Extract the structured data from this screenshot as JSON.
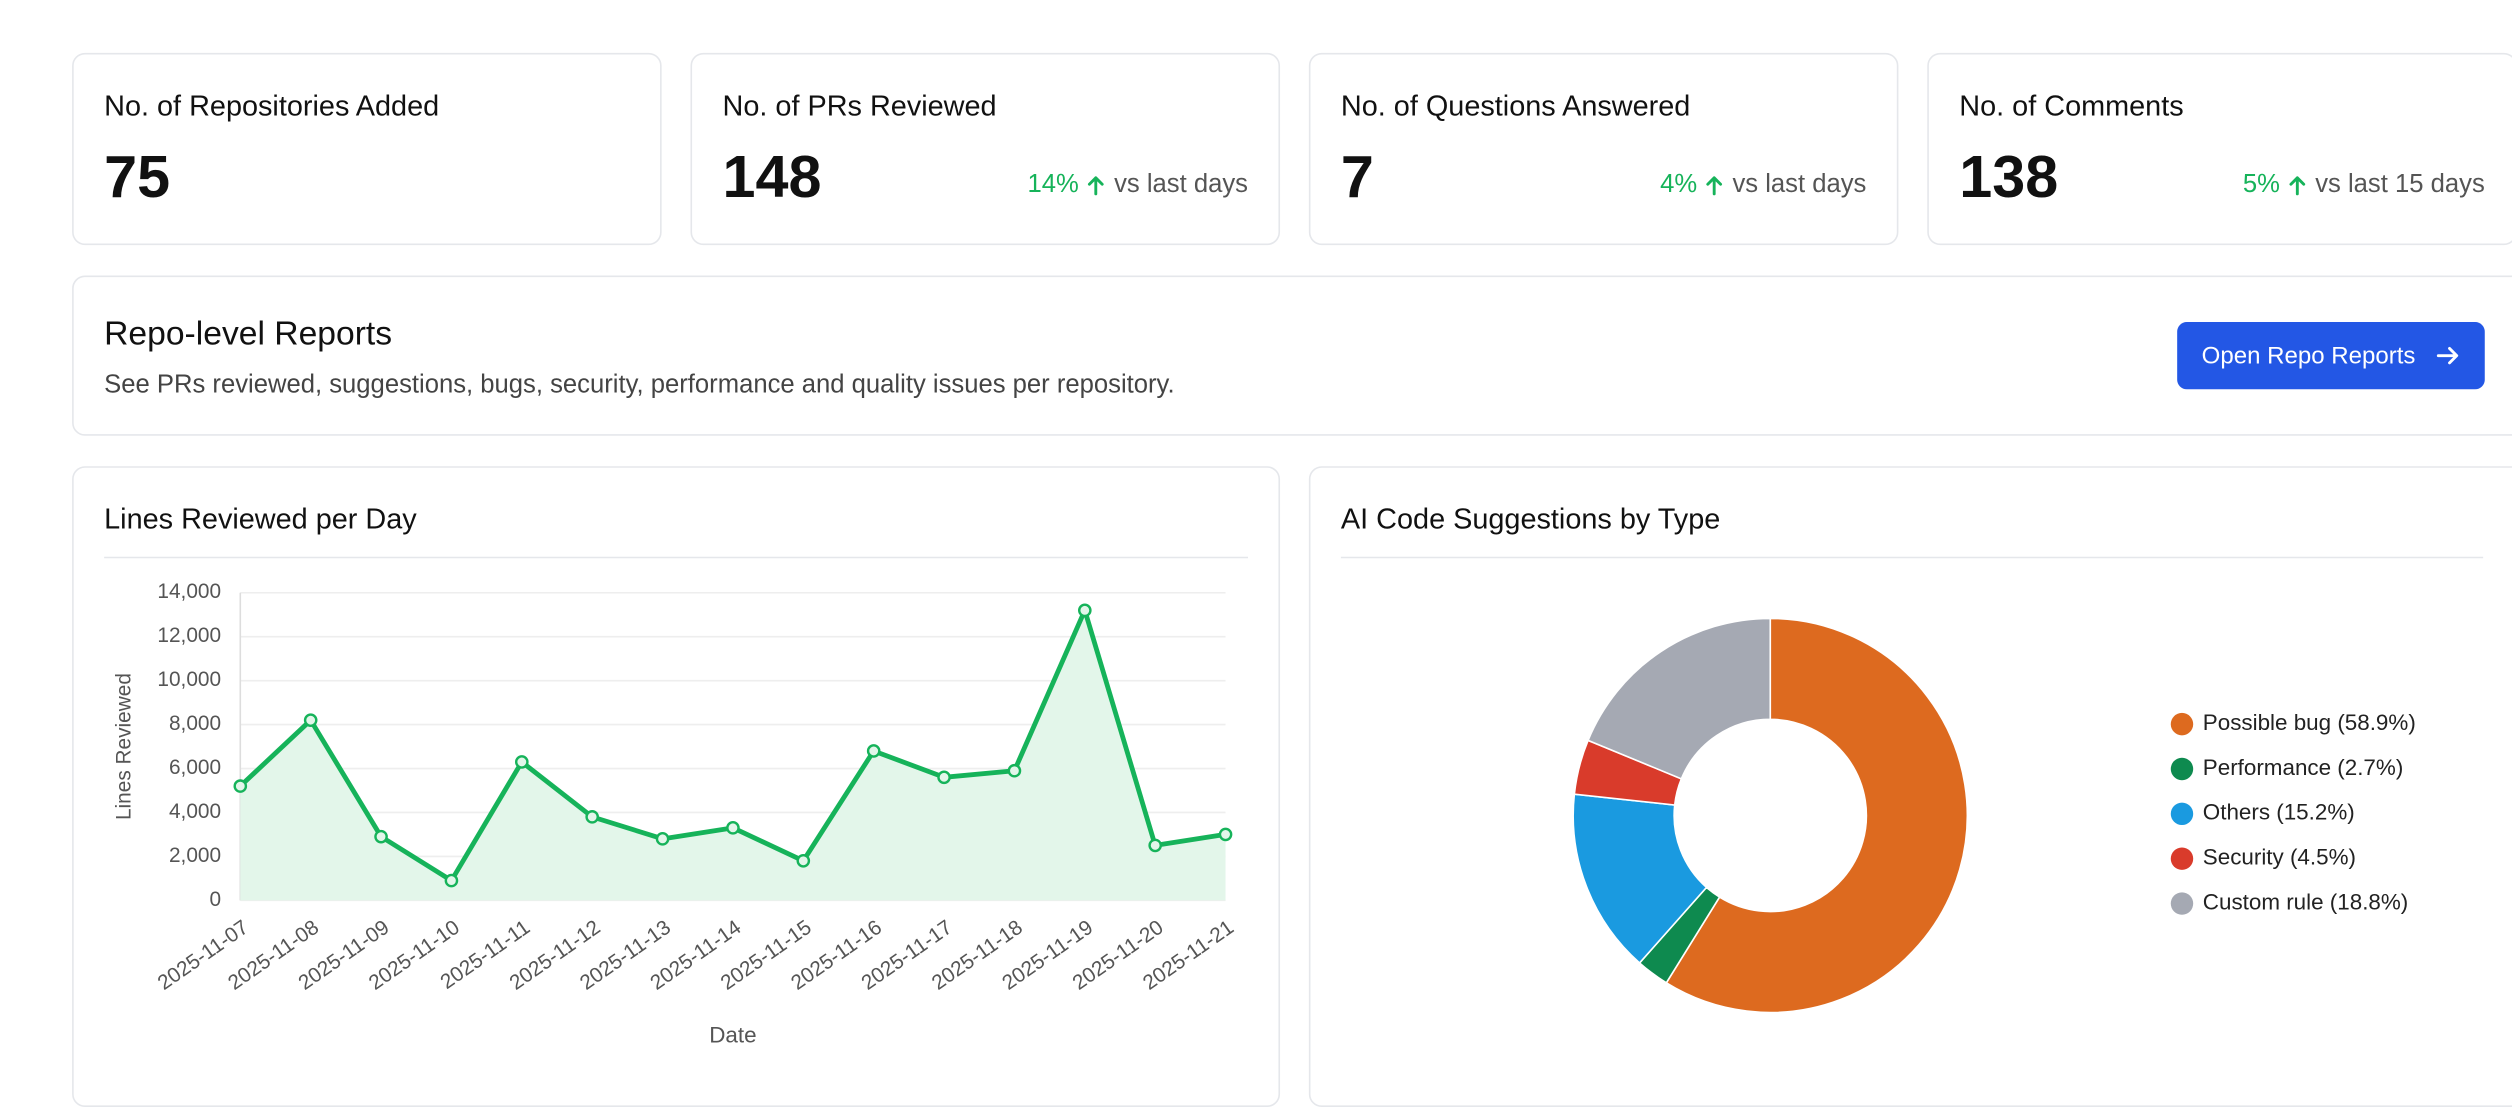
{
  "stats": [
    {
      "title": "No. of Repositories Added",
      "value": "75"
    },
    {
      "title": "No. of PRs Reviewed",
      "value": "148",
      "change": "14%",
      "period": "vs last days"
    },
    {
      "title": "No. of Questions Answered",
      "value": "7",
      "change": "4%",
      "period": "vs last days"
    },
    {
      "title": "No. of Comments",
      "value": "138",
      "change": "5%",
      "period": "vs last 15 days"
    }
  ],
  "repo_reports": {
    "title": "Repo-level Reports",
    "description": "See PRs reviewed, suggestions, bugs, security, performance and quality issues per repository.",
    "button": "Open Repo Reports"
  },
  "chart_data": [
    {
      "type": "line",
      "title": "Lines Reviewed per Day",
      "x_label": "Date",
      "y_label": "Lines Reviewed",
      "categories": [
        "2025-11-07",
        "2025-11-08",
        "2025-11-09",
        "2025-11-10",
        "2025-11-11",
        "2025-11-12",
        "2025-11-13",
        "2025-11-14",
        "2025-11-15",
        "2025-11-16",
        "2025-11-17",
        "2025-11-18",
        "2025-11-19",
        "2025-11-20",
        "2025-11-21"
      ],
      "values": [
        5200,
        8200,
        2900,
        900,
        6300,
        3800,
        2800,
        3300,
        1800,
        6800,
        5600,
        5900,
        13200,
        2500,
        3000
      ],
      "color": "#16b35a",
      "fill": "#e3f6ea",
      "ylim": [
        0,
        14000
      ],
      "yticks": [
        0,
        {
          "value": 2000,
          "label": "2,000"
        },
        {
          "value": 4000,
          "label": "4,000"
        },
        {
          "value": 6000,
          "label": "6,000"
        },
        {
          "value": 8000,
          "label": "8,000"
        },
        {
          "value": 10000,
          "label": "10,000"
        },
        {
          "value": 12000,
          "label": "12,000"
        },
        {
          "value": 14000,
          "label": "14,000"
        }
      ],
      "grid": true
    },
    {
      "type": "pie",
      "title": "AI Code Suggestions by Type",
      "donut": true,
      "legend": "right",
      "categories": [
        "Possible bug (58.9%)",
        "Performance (2.7%)",
        "Others (15.2%)",
        "Security (4.5%)",
        "Custom rule (18.8%)"
      ],
      "values": [
        58.9,
        2.7,
        15.2,
        4.5,
        18.8
      ],
      "colors": [
        "#dd6a1f",
        "#0e8a4f",
        "#1a9ae0",
        "#d93b2b",
        "#a5a9b3"
      ]
    }
  ]
}
